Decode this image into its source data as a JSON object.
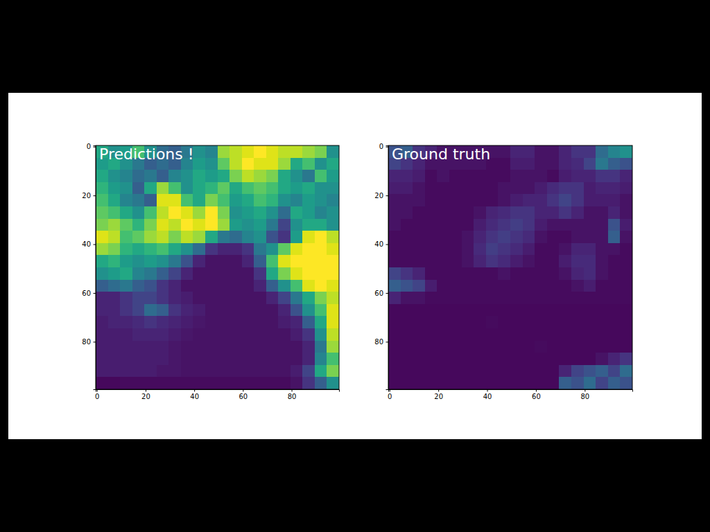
{
  "chart_data": [
    {
      "type": "heatmap",
      "title": "Predictions !",
      "x": [
        2,
        7,
        12,
        17,
        22,
        27,
        32,
        37,
        42,
        47,
        52,
        57,
        62,
        67,
        72,
        77,
        82,
        87,
        92,
        97
      ],
      "y": [
        2,
        7,
        12,
        17,
        22,
        27,
        32,
        37,
        42,
        47,
        52,
        57,
        62,
        67,
        72,
        77,
        82,
        87,
        92,
        97
      ],
      "xlim": [
        -0.5,
        99.5
      ],
      "ylim": [
        99.5,
        -0.5
      ],
      "xticks": [
        0,
        20,
        40,
        60,
        80
      ],
      "yticks": [
        0,
        20,
        40,
        60,
        80
      ],
      "zlim": [
        0,
        1
      ],
      "cells": [
        [
          0.6,
          0.5,
          0.55,
          0.7,
          0.5,
          0.35,
          0.3,
          0.4,
          0.5,
          0.45,
          0.85,
          0.9,
          0.95,
          1,
          0.95,
          0.9,
          0.9,
          0.85,
          0.8,
          0.5
        ],
        [
          0.55,
          0.6,
          0.5,
          0.4,
          0.3,
          0.35,
          0.3,
          0.45,
          0.55,
          0.5,
          0.75,
          0.9,
          1,
          0.95,
          0.95,
          0.85,
          0.6,
          0.7,
          0.5,
          0.6
        ],
        [
          0.6,
          0.5,
          0.45,
          0.35,
          0.4,
          0.3,
          0.45,
          0.5,
          0.6,
          0.55,
          0.6,
          0.8,
          0.9,
          0.85,
          0.8,
          0.6,
          0.5,
          0.4,
          0.7,
          0.55
        ],
        [
          0.65,
          0.55,
          0.5,
          0.3,
          0.6,
          0.85,
          0.7,
          0.5,
          0.6,
          0.65,
          0.75,
          0.6,
          0.7,
          0.75,
          0.7,
          0.6,
          0.55,
          0.6,
          0.5,
          0.5
        ],
        [
          0.7,
          0.6,
          0.45,
          0.4,
          0.3,
          0.95,
          0.95,
          0.7,
          0.6,
          0.8,
          0.7,
          0.55,
          0.6,
          0.7,
          0.65,
          0.5,
          0.45,
          0.55,
          0.5,
          0.45
        ],
        [
          0.75,
          0.7,
          0.6,
          0.5,
          0.7,
          0.9,
          1,
          0.95,
          0.85,
          1,
          0.8,
          0.5,
          0.55,
          0.6,
          0.5,
          0.35,
          0.6,
          0.55,
          0.45,
          0.5
        ],
        [
          0.8,
          0.85,
          0.75,
          0.65,
          0.8,
          0.95,
          0.9,
          1,
          0.95,
          1,
          0.85,
          0.55,
          0.5,
          0.55,
          0.4,
          0.2,
          0.5,
          0.6,
          0.6,
          0.5
        ],
        [
          0.95,
          0.9,
          0.7,
          0.75,
          0.85,
          0.9,
          0.8,
          0.9,
          0.85,
          0.6,
          0.4,
          0.35,
          0.45,
          0.5,
          0.25,
          0.15,
          0.55,
          0.95,
          1,
          0.9
        ],
        [
          0.85,
          0.8,
          0.65,
          0.6,
          0.65,
          0.7,
          0.6,
          0.5,
          0.35,
          0.15,
          0.1,
          0.1,
          0.15,
          0.4,
          0.5,
          0.75,
          0.95,
          1,
          1,
          0.95
        ],
        [
          0.6,
          0.65,
          0.55,
          0.5,
          0.55,
          0.5,
          0.4,
          0.25,
          0.1,
          0.05,
          0.05,
          0.05,
          0.1,
          0.3,
          0.7,
          0.95,
          1,
          1,
          1,
          1
        ],
        [
          0.5,
          0.55,
          0.6,
          0.45,
          0.4,
          0.3,
          0.2,
          0.1,
          0.05,
          0.05,
          0.05,
          0.05,
          0.05,
          0.15,
          0.6,
          0.8,
          0.95,
          1,
          1,
          1
        ],
        [
          0.3,
          0.35,
          0.4,
          0.3,
          0.25,
          0.15,
          0.1,
          0.05,
          0.05,
          0.05,
          0.05,
          0.05,
          0.05,
          0.1,
          0.3,
          0.5,
          0.7,
          0.95,
          1,
          0.95
        ],
        [
          0.1,
          0.1,
          0.15,
          0.2,
          0.2,
          0.15,
          0.1,
          0.08,
          0.05,
          0.05,
          0.05,
          0.05,
          0.05,
          0.05,
          0.1,
          0.2,
          0.4,
          0.6,
          0.8,
          0.9
        ],
        [
          0.1,
          0.1,
          0.15,
          0.2,
          0.35,
          0.3,
          0.15,
          0.1,
          0.08,
          0.05,
          0.05,
          0.05,
          0.05,
          0.05,
          0.05,
          0.1,
          0.25,
          0.5,
          0.7,
          0.95
        ],
        [
          0.08,
          0.1,
          0.1,
          0.12,
          0.15,
          0.12,
          0.1,
          0.08,
          0.06,
          0.05,
          0.05,
          0.05,
          0.05,
          0.05,
          0.05,
          0.08,
          0.1,
          0.3,
          0.6,
          0.95
        ],
        [
          0.08,
          0.08,
          0.08,
          0.1,
          0.1,
          0.1,
          0.08,
          0.06,
          0.05,
          0.05,
          0.05,
          0.05,
          0.05,
          0.05,
          0.05,
          0.05,
          0.08,
          0.15,
          0.5,
          0.9
        ],
        [
          0.08,
          0.08,
          0.08,
          0.08,
          0.08,
          0.08,
          0.06,
          0.05,
          0.05,
          0.05,
          0.05,
          0.05,
          0.05,
          0.05,
          0.05,
          0.05,
          0.05,
          0.1,
          0.4,
          0.85
        ],
        [
          0.08,
          0.08,
          0.08,
          0.08,
          0.08,
          0.08,
          0.06,
          0.05,
          0.05,
          0.05,
          0.05,
          0.05,
          0.05,
          0.05,
          0.05,
          0.05,
          0.05,
          0.1,
          0.45,
          0.7
        ],
        [
          0.08,
          0.08,
          0.08,
          0.08,
          0.08,
          0.06,
          0.06,
          0.05,
          0.05,
          0.05,
          0.05,
          0.05,
          0.05,
          0.05,
          0.05,
          0.05,
          0.08,
          0.2,
          0.6,
          0.8
        ],
        [
          0.02,
          0.02,
          0.03,
          0.03,
          0.03,
          0.03,
          0.03,
          0.03,
          0.03,
          0.03,
          0.03,
          0.03,
          0.03,
          0.03,
          0.03,
          0.03,
          0.05,
          0.15,
          0.3,
          0.5
        ]
      ]
    },
    {
      "type": "heatmap",
      "title": "Ground truth",
      "x": [
        2,
        7,
        12,
        17,
        22,
        27,
        32,
        37,
        42,
        47,
        52,
        57,
        62,
        67,
        72,
        77,
        82,
        87,
        92,
        97
      ],
      "y": [
        2,
        7,
        12,
        17,
        22,
        27,
        32,
        37,
        42,
        47,
        52,
        57,
        62,
        67,
        72,
        77,
        82,
        87,
        92,
        97
      ],
      "xlim": [
        -0.5,
        99.5
      ],
      "ylim": [
        99.5,
        -0.5
      ],
      "xticks": [
        0,
        20,
        40,
        60,
        80
      ],
      "yticks": [
        0,
        20,
        40,
        60,
        80
      ],
      "zlim": [
        0,
        1
      ],
      "cells": [
        [
          0.25,
          0.3,
          0.15,
          0.1,
          0.05,
          0.05,
          0.05,
          0.05,
          0.05,
          0.05,
          0.1,
          0.1,
          0.05,
          0.05,
          0.1,
          0.15,
          0.15,
          0.35,
          0.45,
          0.5
        ],
        [
          0.2,
          0.15,
          0.1,
          0.05,
          0.05,
          0.05,
          0.05,
          0.05,
          0.03,
          0.03,
          0.08,
          0.08,
          0.05,
          0.05,
          0.1,
          0.12,
          0.2,
          0.4,
          0.3,
          0.25
        ],
        [
          0.1,
          0.1,
          0.08,
          0.03,
          0.05,
          0.03,
          0.03,
          0.03,
          0.03,
          0.03,
          0.05,
          0.05,
          0.05,
          0.03,
          0.08,
          0.1,
          0.1,
          0.15,
          0.15,
          0.1
        ],
        [
          0.08,
          0.08,
          0.05,
          0.03,
          0.03,
          0.03,
          0.03,
          0.03,
          0.03,
          0.05,
          0.05,
          0.05,
          0.08,
          0.12,
          0.15,
          0.15,
          0.08,
          0.1,
          0.1,
          0.08
        ],
        [
          0.05,
          0.05,
          0.05,
          0.03,
          0.03,
          0.03,
          0.03,
          0.03,
          0.03,
          0.05,
          0.08,
          0.1,
          0.1,
          0.15,
          0.2,
          0.15,
          0.08,
          0.08,
          0.08,
          0.05
        ],
        [
          0.05,
          0.05,
          0.03,
          0.03,
          0.03,
          0.03,
          0.03,
          0.05,
          0.1,
          0.12,
          0.15,
          0.15,
          0.1,
          0.1,
          0.15,
          0.1,
          0.05,
          0.05,
          0.1,
          0.05
        ],
        [
          0.05,
          0.03,
          0.03,
          0.03,
          0.03,
          0.03,
          0.03,
          0.08,
          0.12,
          0.15,
          0.18,
          0.15,
          0.08,
          0.05,
          0.05,
          0.05,
          0.05,
          0.05,
          0.25,
          0.08
        ],
        [
          0.03,
          0.03,
          0.03,
          0.03,
          0.03,
          0.03,
          0.05,
          0.1,
          0.15,
          0.18,
          0.15,
          0.12,
          0.05,
          0.03,
          0.03,
          0.05,
          0.05,
          0.05,
          0.3,
          0.05
        ],
        [
          0.03,
          0.03,
          0.03,
          0.03,
          0.03,
          0.03,
          0.05,
          0.12,
          0.18,
          0.15,
          0.12,
          0.08,
          0.03,
          0.03,
          0.05,
          0.1,
          0.1,
          0.05,
          0.05,
          0.03
        ],
        [
          0.03,
          0.03,
          0.03,
          0.03,
          0.03,
          0.03,
          0.05,
          0.1,
          0.15,
          0.12,
          0.08,
          0.05,
          0.03,
          0.03,
          0.08,
          0.12,
          0.12,
          0.05,
          0.03,
          0.03
        ],
        [
          0.2,
          0.15,
          0.1,
          0.03,
          0.03,
          0.03,
          0.03,
          0.03,
          0.03,
          0.05,
          0.03,
          0.03,
          0.03,
          0.03,
          0.05,
          0.1,
          0.12,
          0.05,
          0.03,
          0.03
        ],
        [
          0.3,
          0.25,
          0.2,
          0.08,
          0.03,
          0.03,
          0.03,
          0.03,
          0.03,
          0.03,
          0.03,
          0.03,
          0.03,
          0.03,
          0.03,
          0.05,
          0.08,
          0.03,
          0.03,
          0.03
        ],
        [
          0.1,
          0.05,
          0.05,
          0.03,
          0.03,
          0.03,
          0.03,
          0.03,
          0.03,
          0.03,
          0.03,
          0.03,
          0.03,
          0.03,
          0.03,
          0.03,
          0.03,
          0.03,
          0.03,
          0.03
        ],
        [
          0.02,
          0.02,
          0.02,
          0.02,
          0.02,
          0.02,
          0.02,
          0.02,
          0.02,
          0.02,
          0.02,
          0.02,
          0.02,
          0.02,
          0.02,
          0.02,
          0.02,
          0.02,
          0.02,
          0.02
        ],
        [
          0.02,
          0.02,
          0.02,
          0.02,
          0.02,
          0.02,
          0.02,
          0.02,
          0.03,
          0.02,
          0.02,
          0.02,
          0.02,
          0.02,
          0.02,
          0.02,
          0.02,
          0.02,
          0.02,
          0.02
        ],
        [
          0.02,
          0.02,
          0.02,
          0.02,
          0.02,
          0.02,
          0.02,
          0.02,
          0.02,
          0.02,
          0.02,
          0.02,
          0.02,
          0.02,
          0.02,
          0.02,
          0.02,
          0.02,
          0.02,
          0.02
        ],
        [
          0.02,
          0.02,
          0.02,
          0.02,
          0.02,
          0.02,
          0.02,
          0.02,
          0.02,
          0.02,
          0.02,
          0.02,
          0.03,
          0.02,
          0.02,
          0.02,
          0.02,
          0.02,
          0.02,
          0.02
        ],
        [
          0.02,
          0.02,
          0.02,
          0.02,
          0.02,
          0.02,
          0.02,
          0.02,
          0.02,
          0.02,
          0.02,
          0.02,
          0.02,
          0.02,
          0.02,
          0.02,
          0.02,
          0.05,
          0.1,
          0.15
        ],
        [
          0.02,
          0.02,
          0.02,
          0.02,
          0.02,
          0.02,
          0.02,
          0.02,
          0.02,
          0.02,
          0.02,
          0.02,
          0.02,
          0.02,
          0.1,
          0.2,
          0.25,
          0.3,
          0.2,
          0.35
        ],
        [
          0.02,
          0.02,
          0.02,
          0.02,
          0.02,
          0.02,
          0.02,
          0.02,
          0.02,
          0.02,
          0.02,
          0.02,
          0.02,
          0.02,
          0.3,
          0.25,
          0.35,
          0.2,
          0.3,
          0.25
        ]
      ]
    }
  ]
}
